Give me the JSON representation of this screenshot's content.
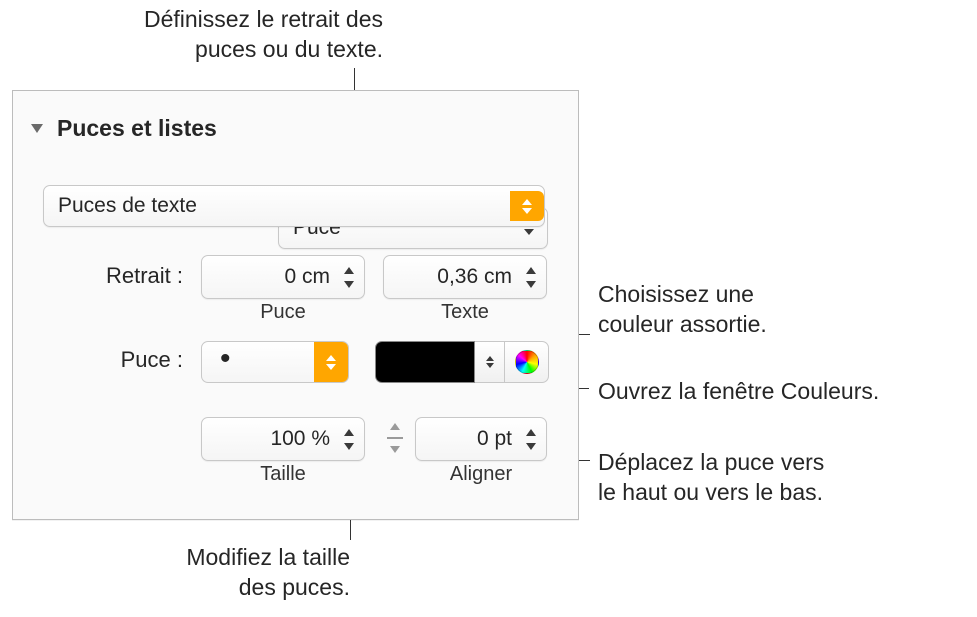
{
  "callouts": {
    "indent": "Définissez le retrait des\npuces ou du texte.",
    "matching_color": "Choisissez une\ncouleur assortie.",
    "open_colors": "Ouvrez la fenêtre Couleurs.",
    "move_bullet": "Déplacez la puce vers\nle haut ou vers le bas.",
    "bullet_size": "Modifiez la taille\ndes puces."
  },
  "panel": {
    "section_title": "Puces et listes",
    "list_style": "Puce",
    "bullet_type": "Puces de texte",
    "retrait_label": "Retrait :",
    "puce_indent": "0 cm",
    "texte_indent": "0,36 cm",
    "puce_sublabel": "Puce",
    "texte_sublabel": "Texte",
    "bullet_label": "Puce :",
    "bullet_char": "•",
    "swatch_color": "#000000",
    "taille_value": "100 %",
    "taille_label": "Taille",
    "aligner_value": "0 pt",
    "aligner_label": "Aligner"
  }
}
